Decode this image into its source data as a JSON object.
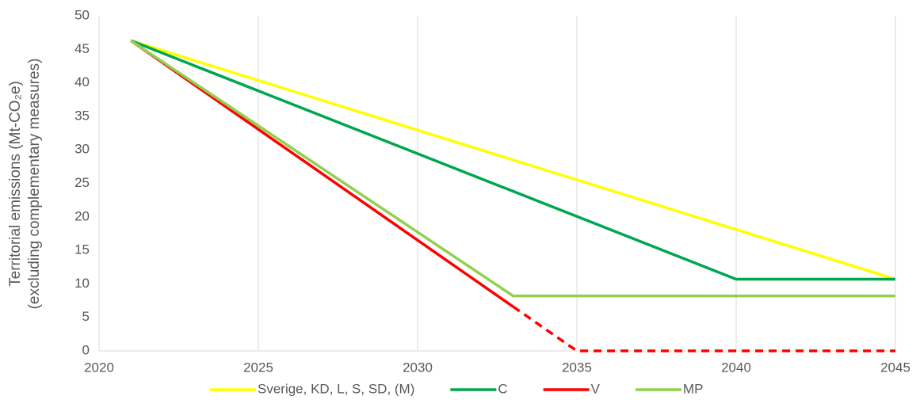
{
  "chart_data": {
    "type": "line",
    "y_label_lines": [
      "Territorial emissions  (Mt-CO₂e)",
      "(excluding complementary measures)"
    ],
    "xlim": [
      2020,
      2045
    ],
    "xticks": [
      2020,
      2025,
      2030,
      2035,
      2040,
      2045
    ],
    "ylim": [
      0,
      50
    ],
    "yticks": [
      0,
      5,
      10,
      15,
      20,
      25,
      30,
      35,
      40,
      45,
      50
    ],
    "x_grid": true,
    "legend": "bottom",
    "series": [
      {
        "name": "Sverige, KD, L, S, SD, (M)",
        "color": "#ffff00",
        "x": [
          2021,
          2045
        ],
        "values": [
          46.3,
          10.7
        ],
        "segment_styles": [
          "solid"
        ]
      },
      {
        "name": "C",
        "color": "#00a651",
        "x": [
          2021,
          2040,
          2045
        ],
        "values": [
          46.3,
          10.7,
          10.7
        ],
        "segment_styles": [
          "solid",
          "solid"
        ]
      },
      {
        "name": "V",
        "color": "#ff0000",
        "x": [
          2021,
          2033,
          2035,
          2045
        ],
        "values": [
          46.3,
          6.6,
          0,
          0
        ],
        "segment_styles": [
          "solid",
          "dashed",
          "dashed"
        ]
      },
      {
        "name": "MP",
        "color": "#92d050",
        "x": [
          2021,
          2033,
          2045
        ],
        "values": [
          46.3,
          8.2,
          8.2
        ],
        "segment_styles": [
          "solid",
          "solid"
        ]
      }
    ]
  }
}
